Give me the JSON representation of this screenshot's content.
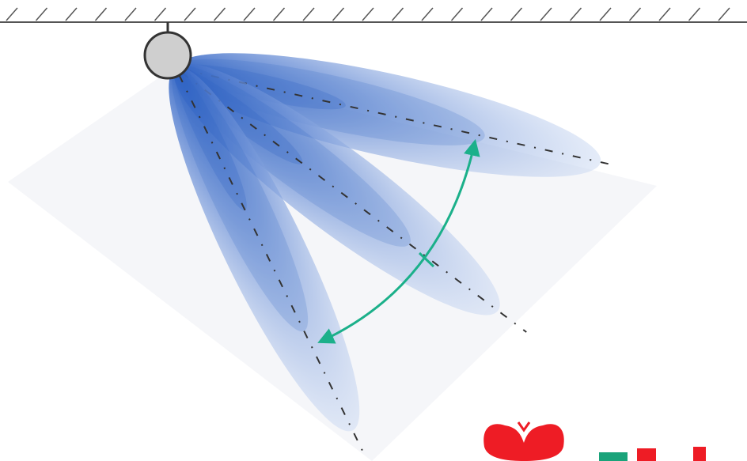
{
  "diagram": {
    "kind": "beam-sweep",
    "beam_count": 3,
    "colors": {
      "beam_core": "#2f62c4",
      "beam_edge": "#cfdcf3",
      "sweep_arrow": "#1bb08a",
      "pivot_fill": "#cfcfcf",
      "pivot_stroke": "#333333",
      "ceiling": "#555555",
      "axis_line": "#333333"
    }
  },
  "logo": {
    "colors": {
      "mark": "#ee1c25",
      "accent": "#1aa37a"
    }
  }
}
